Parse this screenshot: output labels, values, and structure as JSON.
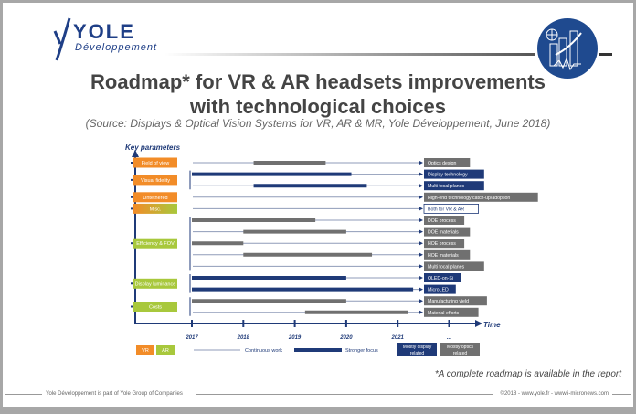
{
  "header": {
    "logo_brand": "YOLE",
    "logo_sub": "Développement",
    "title_line1": "Roadmap* for VR & AR headsets improvements",
    "title_line2": "with technological choices",
    "source": "(Source: Displays & Optical Vision Systems for VR, AR & MR, Yole Développement, June 2018)"
  },
  "diagram": {
    "y_axis_label": "Key parameters",
    "x_axis_label": "Time",
    "years": [
      "2017",
      "2018",
      "2019",
      "2020",
      "2021",
      "..."
    ],
    "colors": {
      "vr": "#f28c28",
      "ar": "#a8c83c",
      "display": "#1f3a78",
      "optics": "#707070",
      "line": "#8f9bb8"
    },
    "parameters": [
      {
        "label": "Field of view",
        "type": "vr",
        "rows": [
          0
        ]
      },
      {
        "label": "Visual fidelity",
        "type": "vr",
        "rows": [
          1,
          2
        ]
      },
      {
        "label": "Untethered",
        "type": "vr",
        "rows": [
          3
        ]
      },
      {
        "label": "Misc.",
        "type": "both",
        "rows": [
          4
        ]
      },
      {
        "label": "Efficiency & FOV",
        "type": "ar",
        "rows": [
          5,
          6,
          7,
          8,
          9
        ]
      },
      {
        "label": "Display luminance",
        "type": "ar",
        "rows": [
          10,
          11
        ]
      },
      {
        "label": "Costs",
        "type": "ar",
        "rows": [
          12,
          13
        ]
      }
    ],
    "rows": [
      {
        "label": "Optics design",
        "category": "optics",
        "focus": [
          2018.2,
          2019.6
        ]
      },
      {
        "label": "Display technology",
        "category": "display",
        "focus": [
          2017,
          2020.1
        ]
      },
      {
        "label": "Multi focal planes",
        "category": "display",
        "focus": [
          2018.2,
          2020.4
        ]
      },
      {
        "label": "High-end technology catch-up/adoption",
        "category": "optics",
        "focus": null
      },
      {
        "label": "Both for VR & AR",
        "category": "outline",
        "focus": null
      },
      {
        "label": "DOE process",
        "category": "optics",
        "focus": [
          2017,
          2019.4
        ]
      },
      {
        "label": "DOE materials",
        "category": "optics",
        "focus": [
          2018,
          2020
        ]
      },
      {
        "label": "HOE process",
        "category": "optics",
        "focus": [
          2017,
          2018
        ]
      },
      {
        "label": "HOE materials",
        "category": "optics",
        "focus": [
          2018,
          2020.5
        ]
      },
      {
        "label": "Multi focal planes",
        "category": "optics",
        "focus": null
      },
      {
        "label": "OLED-on-Si",
        "category": "display",
        "focus": [
          2017,
          2020
        ]
      },
      {
        "label": "MicroLED",
        "category": "display",
        "focus": [
          2017,
          2021.3
        ]
      },
      {
        "label": "Manufacturing yield",
        "category": "optics",
        "focus": [
          2017,
          2020
        ]
      },
      {
        "label": "Material efforts",
        "category": "optics",
        "focus": [
          2019.2,
          2021.2
        ]
      }
    ],
    "legend": {
      "vr": "VR",
      "ar": "AR",
      "continuous": "Continuous work",
      "strong": "Stronger focus",
      "display_related": "Mostly display related",
      "optics_related": "Mostly optics related"
    }
  },
  "footer": {
    "note": "*A complete roadmap is available in the report",
    "left": "Yole Développement is part of Yole Group of Companies",
    "right": "©2018 - www.yole.fr - www.i-micronews.com"
  }
}
